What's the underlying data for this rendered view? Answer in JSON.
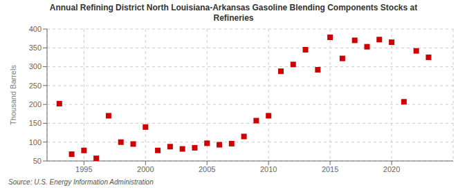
{
  "chart_data": {
    "type": "scatter",
    "title": "Annual Refining District North Louisiana-Arkansas Gasoline Blending Components Stocks at\nRefineries",
    "ylabel": "Thousand Barrels",
    "annotations": [
      "Source: U.S. Energy Information Administration"
    ],
    "x": [
      1993,
      1994,
      1995,
      1996,
      1997,
      1998,
      1999,
      2000,
      2001,
      2002,
      2003,
      2004,
      2005,
      2006,
      2007,
      2008,
      2009,
      2010,
      2011,
      2012,
      2013,
      2014,
      2015,
      2016,
      2017,
      2018,
      2019,
      2020,
      2021,
      2022,
      2023
    ],
    "values": [
      202,
      68,
      78,
      57,
      170,
      100,
      95,
      140,
      78,
      88,
      82,
      85,
      97,
      93,
      96,
      115,
      157,
      170,
      288,
      306,
      345,
      292,
      378,
      322,
      370,
      353,
      372,
      365,
      207,
      342,
      325
    ],
    "color": "#cc0000",
    "marker": "square",
    "xlim": [
      1992,
      2025
    ],
    "ylim": [
      50,
      400
    ],
    "xticks": [
      1995,
      2000,
      2005,
      2010,
      2015,
      2020
    ],
    "yticks": [
      50,
      100,
      150,
      200,
      250,
      300,
      350,
      400
    ],
    "grid": true
  }
}
